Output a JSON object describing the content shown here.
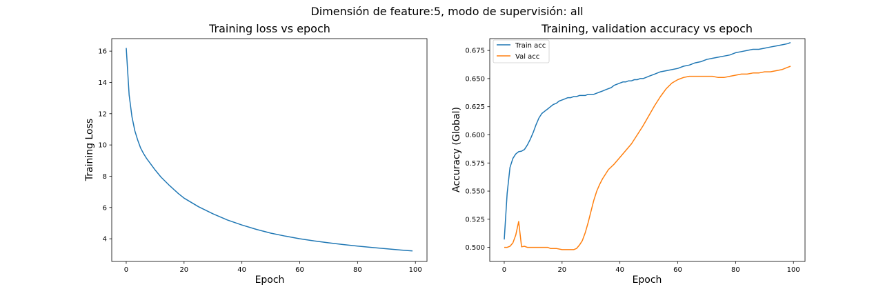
{
  "suptitle": "Dimensión de feature:5, modo de supervisión: all",
  "chart_data": [
    {
      "type": "line",
      "title": "Training loss vs epoch",
      "xlabel": "Epoch",
      "ylabel": "Training Loss",
      "xlim": [
        -5,
        104
      ],
      "ylim": [
        2.55,
        16.8
      ],
      "xticks": [
        0,
        20,
        40,
        60,
        80,
        100
      ],
      "yticks": [
        4,
        6,
        8,
        10,
        12,
        14,
        16
      ],
      "ytick_labels": [
        "4",
        "6",
        "8",
        "10",
        "12",
        "14",
        "16"
      ],
      "grid": false,
      "series": [
        {
          "color": "#1f77b4",
          "x": [
            0,
            1,
            2,
            3,
            4,
            5,
            6,
            7,
            8,
            10,
            12,
            15,
            18,
            20,
            25,
            30,
            35,
            40,
            45,
            50,
            55,
            60,
            65,
            70,
            75,
            80,
            85,
            90,
            95,
            99
          ],
          "y": [
            16.2,
            13.2,
            11.8,
            10.9,
            10.3,
            9.8,
            9.45,
            9.15,
            8.9,
            8.4,
            7.95,
            7.4,
            6.9,
            6.6,
            6.05,
            5.6,
            5.2,
            4.88,
            4.6,
            4.36,
            4.17,
            4.0,
            3.86,
            3.74,
            3.63,
            3.53,
            3.44,
            3.36,
            3.28,
            3.22
          ]
        }
      ]
    },
    {
      "type": "line",
      "title": "Training, validation accuracy vs epoch",
      "xlabel": "Epoch",
      "ylabel": "Accuracy (Global)",
      "xlim": [
        -5,
        104
      ],
      "ylim": [
        0.4875,
        0.6855
      ],
      "xticks": [
        0,
        20,
        40,
        60,
        80,
        100
      ],
      "yticks": [
        0.5,
        0.525,
        0.55,
        0.575,
        0.6,
        0.625,
        0.65,
        0.675
      ],
      "ytick_labels": [
        "0.500",
        "0.525",
        "0.550",
        "0.575",
        "0.600",
        "0.625",
        "0.650",
        "0.675"
      ],
      "grid": false,
      "legend_position": "top-left",
      "series": [
        {
          "name": "Train acc",
          "color": "#1f77b4",
          "x": [
            0,
            1,
            2,
            3,
            4,
            5,
            6,
            7,
            8,
            9,
            10,
            11,
            12,
            13,
            14,
            15,
            16,
            17,
            18,
            19,
            20,
            21,
            22,
            23,
            24,
            25,
            26,
            27,
            28,
            29,
            30,
            31,
            32,
            33,
            34,
            35,
            36,
            37,
            38,
            39,
            40,
            41,
            42,
            43,
            44,
            45,
            46,
            47,
            48,
            49,
            50,
            52,
            54,
            56,
            58,
            60,
            62,
            64,
            66,
            68,
            70,
            72,
            74,
            76,
            78,
            80,
            82,
            84,
            86,
            88,
            90,
            92,
            94,
            96,
            98,
            99
          ],
          "y": [
            0.507,
            0.548,
            0.571,
            0.579,
            0.583,
            0.585,
            0.5855,
            0.587,
            0.591,
            0.596,
            0.602,
            0.609,
            0.615,
            0.619,
            0.621,
            0.623,
            0.625,
            0.627,
            0.628,
            0.63,
            0.631,
            0.632,
            0.633,
            0.633,
            0.634,
            0.634,
            0.635,
            0.635,
            0.635,
            0.636,
            0.636,
            0.636,
            0.637,
            0.638,
            0.639,
            0.64,
            0.641,
            0.642,
            0.644,
            0.645,
            0.646,
            0.647,
            0.647,
            0.648,
            0.648,
            0.649,
            0.649,
            0.65,
            0.65,
            0.651,
            0.652,
            0.654,
            0.656,
            0.657,
            0.658,
            0.659,
            0.661,
            0.662,
            0.664,
            0.665,
            0.667,
            0.668,
            0.669,
            0.67,
            0.671,
            0.673,
            0.674,
            0.675,
            0.676,
            0.676,
            0.677,
            0.678,
            0.679,
            0.68,
            0.681,
            0.682
          ]
        },
        {
          "name": "Val acc",
          "color": "#ff7f0e",
          "x": [
            0,
            1,
            2,
            3,
            4,
            5,
            6,
            7,
            8,
            10,
            12,
            14,
            15,
            16,
            18,
            20,
            22,
            24,
            25,
            26,
            27,
            28,
            29,
            30,
            31,
            32,
            33,
            34,
            35,
            36,
            38,
            40,
            42,
            44,
            46,
            48,
            50,
            52,
            54,
            56,
            58,
            60,
            62,
            64,
            66,
            68,
            70,
            72,
            74,
            76,
            78,
            80,
            82,
            84,
            86,
            88,
            90,
            92,
            94,
            96,
            98,
            99
          ],
          "y": [
            0.5,
            0.5,
            0.501,
            0.504,
            0.511,
            0.523,
            0.5005,
            0.501,
            0.5,
            0.5,
            0.5,
            0.5,
            0.5,
            0.499,
            0.499,
            0.498,
            0.498,
            0.498,
            0.499,
            0.502,
            0.506,
            0.513,
            0.522,
            0.532,
            0.542,
            0.55,
            0.556,
            0.561,
            0.565,
            0.569,
            0.574,
            0.58,
            0.586,
            0.592,
            0.6,
            0.608,
            0.617,
            0.626,
            0.634,
            0.641,
            0.646,
            0.649,
            0.651,
            0.652,
            0.652,
            0.652,
            0.652,
            0.652,
            0.651,
            0.651,
            0.652,
            0.653,
            0.654,
            0.654,
            0.655,
            0.655,
            0.656,
            0.656,
            0.657,
            0.658,
            0.66,
            0.661
          ]
        }
      ]
    }
  ]
}
